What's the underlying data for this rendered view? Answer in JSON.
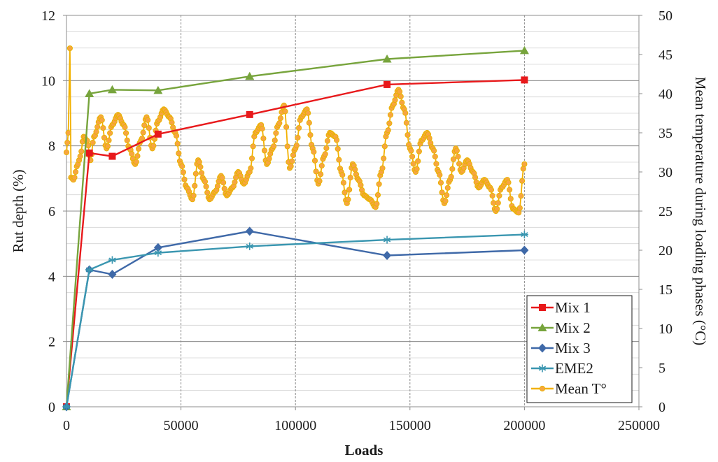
{
  "chart_data": {
    "type": "line",
    "title": "",
    "xlabel": "Loads",
    "ylabel": "Rut depth (%)",
    "y2label": "Mean temperature during loading phases (°C)",
    "xlim": [
      0,
      250000
    ],
    "ylim": [
      0,
      12
    ],
    "y2lim": [
      0,
      50
    ],
    "xticks": [
      "0",
      "50000",
      "100000",
      "150000",
      "200000",
      "250000"
    ],
    "yticks": [
      "0",
      "2",
      "4",
      "6",
      "8",
      "10",
      "12"
    ],
    "y2ticks": [
      "0",
      "5",
      "10",
      "15",
      "20",
      "25",
      "30",
      "35",
      "40",
      "45",
      "50"
    ],
    "grid": true,
    "legend_position": "bottom-right",
    "series": [
      {
        "name": "Mix 1",
        "color": "#e8191b",
        "marker": "square",
        "axis": "left",
        "x": [
          0,
          10000,
          20000,
          40000,
          80000,
          140000,
          200000
        ],
        "y": [
          0,
          7.78,
          7.68,
          8.36,
          8.96,
          9.88,
          10.02
        ]
      },
      {
        "name": "Mix 2",
        "color": "#77a43c",
        "marker": "triangle",
        "axis": "left",
        "x": [
          0,
          10000,
          20000,
          40000,
          80000,
          140000,
          200000
        ],
        "y": [
          0,
          9.6,
          9.72,
          9.7,
          10.13,
          10.66,
          10.92
        ]
      },
      {
        "name": "Mix 3",
        "color": "#3f69a8",
        "marker": "diamond",
        "axis": "left",
        "x": [
          0,
          10000,
          20000,
          40000,
          80000,
          140000,
          200000
        ],
        "y": [
          0,
          4.2,
          4.06,
          4.88,
          5.38,
          4.64,
          4.8
        ]
      },
      {
        "name": "EME2",
        "color": "#3a96b0",
        "marker": "star",
        "axis": "left",
        "x": [
          0,
          10000,
          20000,
          40000,
          80000,
          140000,
          200000
        ],
        "y": [
          0,
          4.2,
          4.5,
          4.72,
          4.92,
          5.12,
          5.28
        ]
      },
      {
        "name": "Mean T°",
        "color": "#f2b100",
        "marker": "circle",
        "axis": "right",
        "x": [
          0,
          800,
          1500,
          2000,
          3000,
          5000,
          6000,
          7500,
          9000,
          10500,
          12000,
          15000,
          17500,
          20000,
          22500,
          25000,
          27500,
          30000,
          32500,
          35000,
          37500,
          40000,
          42500,
          45000,
          47500,
          50000,
          52500,
          55000,
          57500,
          60000,
          62500,
          65000,
          67500,
          70000,
          72500,
          75000,
          77500,
          80000,
          82500,
          85000,
          87500,
          90000,
          92500,
          95000,
          97500,
          100000,
          102500,
          105000,
          107500,
          110000,
          112500,
          115000,
          117500,
          120000,
          122500,
          125000,
          127500,
          130000,
          132500,
          135000,
          137500,
          140000,
          142500,
          145000,
          147500,
          150000,
          152500,
          155000,
          157500,
          160000,
          162500,
          165000,
          167500,
          170000,
          172500,
          175000,
          177500,
          180000,
          182500,
          185000,
          187500,
          190000,
          192500,
          195000,
          197500,
          200000
        ],
        "y": [
          32.5,
          35,
          45.8,
          29.3,
          29,
          31,
          32,
          34.5,
          34,
          31.5,
          34.5,
          37,
          33,
          36,
          37.3,
          36,
          33,
          31,
          34,
          37,
          33,
          36.5,
          38,
          37,
          35,
          31,
          28,
          26.5,
          31.5,
          29,
          26.5,
          27.5,
          29.5,
          27,
          28,
          30,
          28.5,
          30,
          35,
          36,
          31,
          33,
          36,
          38.5,
          30.5,
          33,
          37,
          38,
          33,
          28.5,
          32,
          35,
          34.5,
          30,
          26,
          31,
          29,
          27,
          26.5,
          25.5,
          30,
          35,
          38.5,
          40.5,
          38,
          33,
          30,
          34,
          35,
          33,
          30,
          26,
          29,
          33,
          30,
          31.5,
          30,
          28,
          29,
          28,
          25,
          28,
          29,
          25.3,
          24.8,
          31
        ]
      }
    ]
  }
}
